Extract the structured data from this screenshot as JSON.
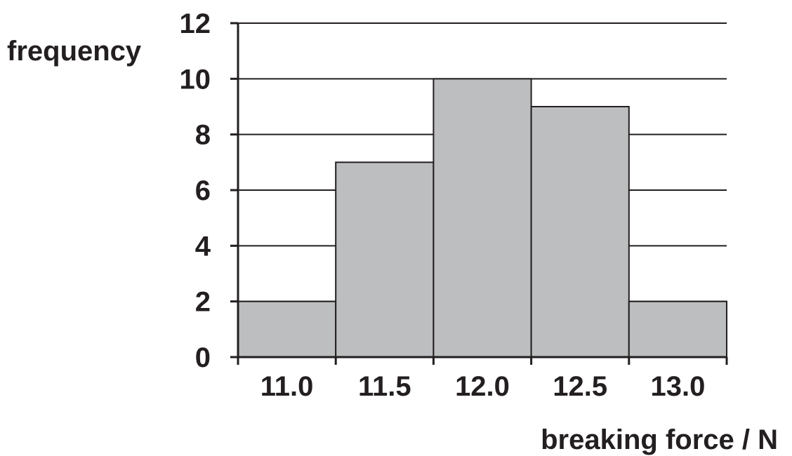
{
  "chart_data": {
    "type": "bar",
    "subtype": "histogram",
    "ylabel": "frequency",
    "xlabel": "breaking force / N",
    "x_tick_labels": [
      "11.0",
      "11.5",
      "12.0",
      "12.5",
      "13.0"
    ],
    "y_tick_labels": [
      "0",
      "2",
      "4",
      "6",
      "8",
      "10",
      "12"
    ],
    "xlim": [
      10.75,
      13.25
    ],
    "ylim": [
      0,
      12
    ],
    "grid": "horizontal",
    "legend": "none",
    "bins": [
      {
        "start": 10.75,
        "end": 11.25,
        "value": 2
      },
      {
        "start": 11.25,
        "end": 11.75,
        "value": 7
      },
      {
        "start": 11.75,
        "end": 12.25,
        "value": 10
      },
      {
        "start": 12.25,
        "end": 12.75,
        "value": 9
      },
      {
        "start": 12.75,
        "end": 13.25,
        "value": 2
      }
    ],
    "colors": {
      "bar_fill": "#bcbec0",
      "line": "#231f20",
      "background": "#ffffff"
    }
  }
}
